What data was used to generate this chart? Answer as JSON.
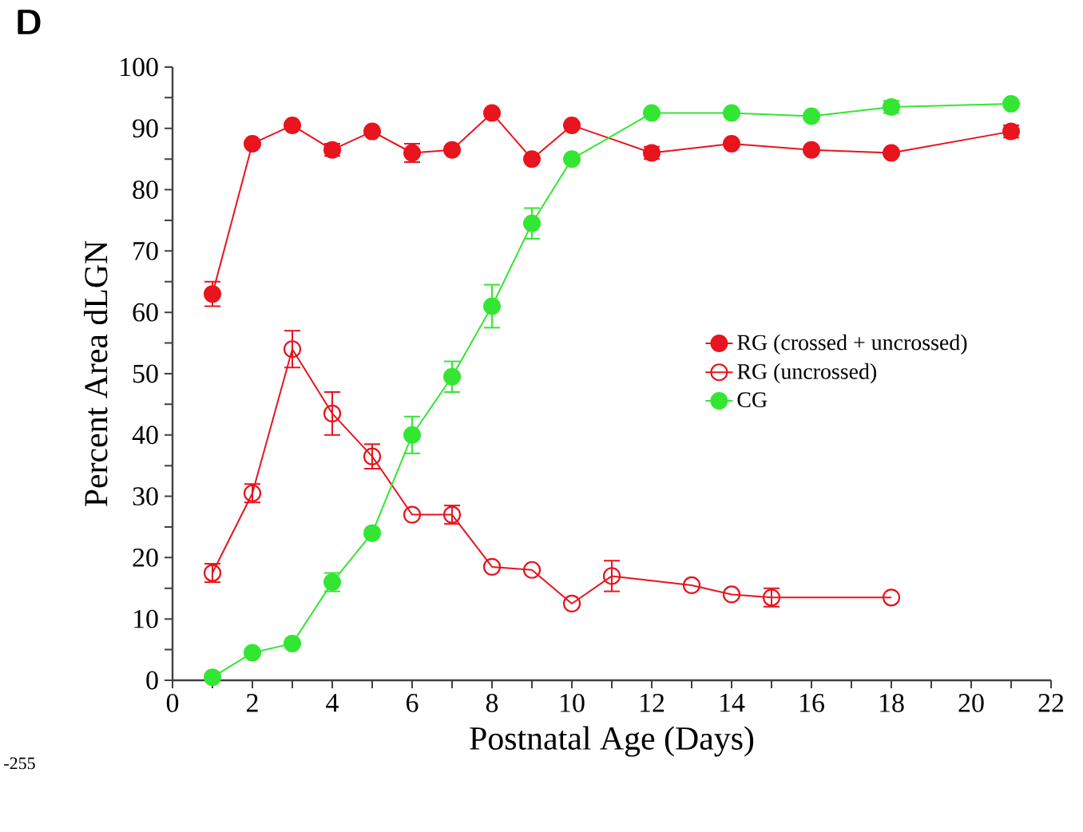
{
  "chart_data": {
    "type": "line",
    "xlabel": "Postnatal Age (Days)",
    "ylabel": "Percent Area dLGN",
    "annotations": [
      "D",
      "-255"
    ],
    "xlim": [
      0,
      22
    ],
    "xticks": [
      0,
      {
        "value": 1,
        "label": null
      },
      2,
      {
        "value": 3,
        "label": null
      },
      4,
      {
        "value": 5,
        "label": null
      },
      6,
      {
        "value": 7,
        "label": null
      },
      8,
      {
        "value": 9,
        "label": null
      },
      10,
      {
        "value": 11,
        "label": null
      },
      12,
      {
        "value": 13,
        "label": null
      },
      14,
      {
        "value": 15,
        "label": null
      },
      16,
      {
        "value": 17,
        "label": null
      },
      18,
      {
        "value": 19,
        "label": null
      },
      20,
      {
        "value": 21,
        "label": null
      },
      22
    ],
    "ylim": [
      0,
      100
    ],
    "yticks": [
      0,
      {
        "value": 5,
        "label": null
      },
      10,
      {
        "value": 15,
        "label": null
      },
      20,
      {
        "value": 25,
        "label": null
      },
      30,
      {
        "value": 35,
        "label": null
      },
      40,
      {
        "value": 45,
        "label": null
      },
      50,
      {
        "value": 55,
        "label": null
      },
      60,
      {
        "value": 65,
        "label": null
      },
      70,
      {
        "value": 75,
        "label": null
      },
      80,
      {
        "value": 85,
        "label": null
      },
      90,
      {
        "value": 95,
        "label": null
      },
      100
    ],
    "grid": false,
    "legend": "right",
    "marker": "circle",
    "line_style": "solid",
    "series": [
      {
        "name": "RG (crossed + uncrossed)",
        "color": "#e8141e",
        "x": [
          1,
          2,
          3,
          4,
          5,
          6,
          7,
          8,
          9,
          10,
          12,
          14,
          16,
          18,
          21
        ],
        "values": [
          63,
          87.5,
          90.5,
          86.5,
          89.5,
          86,
          86.5,
          92.5,
          85,
          90.5,
          86,
          87.5,
          86.5,
          86,
          89.5
        ],
        "errors": [
          2,
          null,
          null,
          1,
          null,
          1.5,
          null,
          null,
          null,
          null,
          1,
          null,
          null,
          null,
          1
        ]
      },
      {
        "name": "RG (uncrossed)",
        "color": "#e8141e",
        "marker": "open circle",
        "x": [
          1,
          2,
          3,
          4,
          5,
          6,
          7,
          8,
          9,
          10,
          11,
          13,
          14,
          15,
          18
        ],
        "values": [
          17.5,
          30.5,
          54,
          43.5,
          36.5,
          27,
          27,
          18.5,
          18,
          12.5,
          17,
          15.5,
          14,
          13.5,
          13.5
        ],
        "errors": [
          1.5,
          1.5,
          3,
          3.5,
          2,
          null,
          1.5,
          null,
          null,
          null,
          2.5,
          null,
          null,
          1.5,
          null
        ]
      },
      {
        "name": "CG",
        "color": "#33e633",
        "x": [
          1,
          2,
          3,
          4,
          5,
          6,
          7,
          8,
          9,
          10,
          12,
          14,
          16,
          18,
          21
        ],
        "values": [
          0.5,
          4.5,
          6,
          16,
          24,
          40,
          49.5,
          61,
          74.5,
          85,
          92.5,
          92.5,
          92,
          93.5,
          94
        ],
        "errors": [
          null,
          null,
          null,
          1.5,
          null,
          3,
          2.5,
          3.5,
          2.5,
          null,
          null,
          null,
          null,
          1,
          null
        ]
      }
    ]
  }
}
